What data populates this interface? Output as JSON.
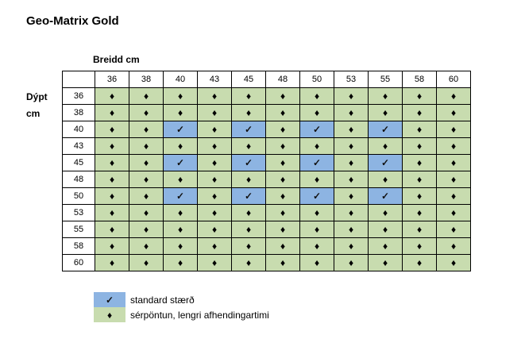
{
  "title": "Geo-Matrix Gold",
  "matrix": {
    "col_axis_label": "Breidd cm",
    "row_axis_label_line1": "Dýpt",
    "row_axis_label_line2": "cm",
    "columns": [
      "36",
      "38",
      "40",
      "43",
      "45",
      "48",
      "50",
      "53",
      "55",
      "58",
      "60"
    ],
    "grid": [
      {
        "row": "36",
        "cells": [
          "d",
          "d",
          "d",
          "d",
          "d",
          "d",
          "d",
          "d",
          "d",
          "d",
          "d"
        ]
      },
      {
        "row": "38",
        "cells": [
          "d",
          "d",
          "d",
          "d",
          "d",
          "d",
          "d",
          "d",
          "d",
          "d",
          "d"
        ]
      },
      {
        "row": "40",
        "cells": [
          "d",
          "d",
          "c",
          "d",
          "c",
          "d",
          "c",
          "d",
          "c",
          "d",
          "d"
        ]
      },
      {
        "row": "43",
        "cells": [
          "d",
          "d",
          "d",
          "d",
          "d",
          "d",
          "d",
          "d",
          "d",
          "d",
          "d"
        ]
      },
      {
        "row": "45",
        "cells": [
          "d",
          "d",
          "c",
          "d",
          "c",
          "d",
          "c",
          "d",
          "c",
          "d",
          "d"
        ]
      },
      {
        "row": "48",
        "cells": [
          "d",
          "d",
          "d",
          "d",
          "d",
          "d",
          "d",
          "d",
          "d",
          "d",
          "d"
        ]
      },
      {
        "row": "50",
        "cells": [
          "d",
          "d",
          "c",
          "d",
          "c",
          "d",
          "c",
          "d",
          "c",
          "d",
          "d"
        ]
      },
      {
        "row": "53",
        "cells": [
          "d",
          "d",
          "d",
          "d",
          "d",
          "d",
          "d",
          "d",
          "d",
          "d",
          "d"
        ]
      },
      {
        "row": "55",
        "cells": [
          "d",
          "d",
          "d",
          "d",
          "d",
          "d",
          "d",
          "d",
          "d",
          "d",
          "d"
        ]
      },
      {
        "row": "58",
        "cells": [
          "d",
          "d",
          "d",
          "d",
          "d",
          "d",
          "d",
          "d",
          "d",
          "d",
          "d"
        ]
      },
      {
        "row": "60",
        "cells": [
          "d",
          "d",
          "d",
          "d",
          "d",
          "d",
          "d",
          "d",
          "d",
          "d",
          "d"
        ]
      }
    ]
  },
  "symbols": {
    "standard": "✓",
    "special": "♦"
  },
  "colors": {
    "standard_bg": "#8db4e2",
    "special_bg": "#c8dcaf",
    "border": "#000000"
  },
  "legend": {
    "standard_label": "standard stærð",
    "special_label": "sérpöntun, lengri afhendingartimi"
  }
}
